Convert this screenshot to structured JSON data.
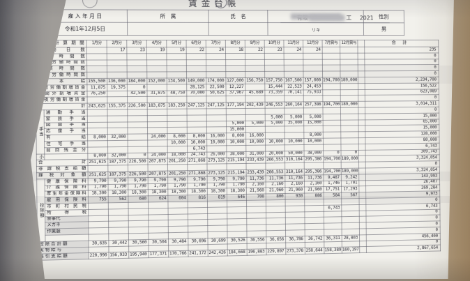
{
  "colors": {
    "paper": "#f2f1ec",
    "desk_left": "#78787c",
    "desk_right": "#b29674",
    "ink": "#2f2f3a",
    "grid_line": "#5f5f6c"
  },
  "document": {
    "title": "賃金台帳",
    "company_line": {
      "prefix": "有限",
      "suffix": "工",
      "year": "2021"
    },
    "header": {
      "hire_date_label": "雇 入 年 月 日",
      "hire_date_value": "令和1年12月5日",
      "department_label": "所　属",
      "name_label": "氏　名",
      "name_reading": "リキ",
      "gender_label": "性別",
      "gender_value": "男"
    },
    "table": {
      "period_header": "賃金計算期間",
      "month_columns": [
        "1月分",
        "2月分",
        "3月分",
        "4月分",
        "5月分",
        "6月分",
        "7月分",
        "8月分",
        "9月分",
        "10月分",
        "11月分",
        "12月分",
        "7月賞与",
        "12月賞与"
      ],
      "total_column": "合 計",
      "rows": [
        {
          "label": "労 働 日 数",
          "group": "",
          "cells": [
            "",
            "17",
            "23",
            "19",
            "19",
            "22",
            "24",
            "18",
            "22",
            "23",
            "24",
            "24",
            "",
            ""
          ],
          "total": "235"
        },
        {
          "label": "労 働 時 間 数",
          "group": "",
          "cells": [],
          "total": "0"
        },
        {
          "label": "休日労働時間数",
          "group": "",
          "cells": [],
          "total": "0"
        },
        {
          "label": "残 業 時 間 数",
          "group": "",
          "cells": [],
          "total": "0"
        },
        {
          "label": "深夜労働時間数",
          "group": "",
          "cells": [],
          "total": "0"
        },
        {
          "label": "基 本 給",
          "group": "",
          "cells": [
            "155,500",
            "136,000",
            "184,000",
            "152,000",
            "134,500",
            "149,000",
            "174,000",
            "127,000",
            "156,750",
            "157,750",
            "167,500",
            "157,000",
            "194,700",
            "189,000"
          ],
          "total": "2,234,700"
        },
        {
          "label": "休日労働割増賃金",
          "group": "",
          "cells": [
            "11,875",
            "19,375",
            "0",
            "",
            "",
            "28,125",
            "22,500",
            "12,227",
            "",
            "15,444",
            "22,523",
            "24,453",
            "",
            ""
          ],
          "total": "156,522"
        },
        {
          "label": "時間外割増賃金",
          "group": "",
          "cells": [
            "76,250",
            "",
            "42,500",
            "31,875",
            "48,750",
            "70,000",
            "50,625",
            "37,967",
            "45,689",
            "73,359",
            "70,141",
            "75,933",
            "",
            ""
          ],
          "total": "623,089"
        },
        {
          "label": "深夜労働割増賃金",
          "group": "",
          "cells": [],
          "total": "0"
        },
        {
          "label": "小 計",
          "group": "",
          "cells": [
            "243,625",
            "155,375",
            "226,500",
            "183,875",
            "183,250",
            "247,125",
            "247,125",
            "177,194",
            "202,439",
            "246,553",
            "260,164",
            "257,386",
            "194,700",
            "189,000"
          ],
          "total": "3,014,311"
        },
        {
          "label": "通 勤 手 当",
          "group": "手当",
          "cells": [],
          "total": "0"
        },
        {
          "label": "家 族 手 当",
          "group": "手当",
          "cells": [
            "",
            "",
            "",
            "",
            "",
            "",
            "",
            "",
            "",
            "5,000",
            "5,000",
            "5,000",
            "",
            ""
          ],
          "total": "15,000"
        },
        {
          "label": "図 面 手 当",
          "group": "手当",
          "cells": [
            "",
            "",
            "",
            "",
            "",
            "",
            "",
            "5,000",
            "5,000",
            "5,000",
            "35,000",
            "15,000",
            "",
            ""
          ],
          "total": "65,000"
        },
        {
          "label": "応 援 手 当",
          "group": "手当",
          "cells": [
            "",
            "",
            "",
            "",
            "",
            "",
            "",
            "15,000",
            "",
            "",
            "",
            "",
            "",
            ""
          ],
          "total": "15,000"
        },
        {
          "label": "有 給",
          "group": "手当",
          "cells": [
            "8,000",
            "32,000",
            "",
            "24,000",
            "8,000",
            "8,000",
            "16,000",
            "8,000",
            "16,000",
            "",
            "",
            "8,000",
            "",
            ""
          ],
          "total": "128,000"
        },
        {
          "label": "住 宅 手 当",
          "group": "手当",
          "cells": [
            "",
            "",
            "",
            "",
            "10,000",
            "10,000",
            "10,000",
            "10,000",
            "10,000",
            "10,000",
            "10,000",
            "10,000",
            "",
            ""
          ],
          "total": "80,000"
        },
        {
          "label": "前回残金分",
          "group": "手当",
          "cells": [
            "",
            "",
            "",
            "",
            "",
            "6,743",
            "",
            "",
            "",
            "",
            "",
            "",
            "",
            ""
          ],
          "total": "6,743"
        },
        {
          "label": "",
          "group": "小計",
          "cells": [
            "8,000",
            "32,000",
            "0",
            "24,000",
            "18,000",
            "24,743",
            "26,000",
            "38,000",
            "31,000",
            "20,000",
            "50,000",
            "38,000",
            "0",
            "0"
          ],
          "total": "309,743"
        },
        {
          "label": "合 計",
          "group": "",
          "cells": [
            "251,625",
            "187,375",
            "226,500",
            "207,875",
            "201,250",
            "271,868",
            "273,125",
            "215,194",
            "233,439",
            "266,553",
            "310,164",
            "295,386",
            "194,700",
            "189,000"
          ],
          "total": "3,324,054"
        },
        {
          "label": "非課税支給額",
          "group": "",
          "cells": [],
          "total": "0"
        },
        {
          "label": "課 税 対 象 額",
          "group": "",
          "cells": [
            "251,625",
            "187,375",
            "226,500",
            "207,875",
            "201,250",
            "271,868",
            "273,125",
            "215,194",
            "233,439",
            "266,553",
            "310,164",
            "295,386",
            "194,700",
            "189,000"
          ],
          "total": "3,324,054"
        },
        {
          "label": "健 康 保 険 料",
          "group": "控除額",
          "cells": [
            "9,790",
            "9,790",
            "9,790",
            "9,790",
            "9,790",
            "9,790",
            "9,790",
            "9,790",
            "11,736",
            "11,736",
            "11,736",
            "11,736",
            "9,487",
            "9,242"
          ],
          "total": "143,993"
        },
        {
          "label": "介 護 保 険 料",
          "group": "控除額",
          "cells": [
            "1,790",
            "1,790",
            "1,790",
            "1,790",
            "1,790",
            "1,790",
            "1,790",
            "1,790",
            "2,160",
            "2,160",
            "2,160",
            "2,160",
            "1,746",
            "1,701"
          ],
          "total": "26,407"
        },
        {
          "label": "厚生年金保険料",
          "group": "控除額",
          "cells": [
            "18,300",
            "18,300",
            "18,300",
            "18,300",
            "18,300",
            "18,300",
            "18,300",
            "18,300",
            "21,960",
            "21,960",
            "21,960",
            "21,960",
            "17,751",
            "17,293"
          ],
          "total": "269,284"
        },
        {
          "label": "雇 用 保 険 料",
          "group": "控除額",
          "shaded": true,
          "cells": [
            "755",
            "562",
            "680",
            "624",
            "604",
            "816",
            "819",
            "646",
            "700",
            "800",
            "930",
            "886",
            "584",
            "567"
          ],
          "total": "9,973"
        },
        {
          "label": "市 町 村 民 税",
          "group": "控除額",
          "cells": [],
          "total": "0"
        },
        {
          "label": "所 得 税",
          "group": "控除額",
          "cells": [
            "",
            "",
            "",
            "",
            "",
            "",
            "",
            "",
            "",
            "",
            "",
            "",
            "6,743",
            ""
          ],
          "total": "6,743"
        },
        {
          "label": "食事代",
          "group": "控除額",
          "label_shaded": true,
          "cells": [],
          "total": "0"
        },
        {
          "label": "メガネ",
          "group": "控除額",
          "label_shaded": true,
          "cells": [],
          "total": "0"
        },
        {
          "label": "作業服",
          "group": "控除額",
          "label_shaded": true,
          "cells": [],
          "total": "0"
        },
        {
          "label": "",
          "group": "控除額",
          "cells": [],
          "total": "0"
        },
        {
          "label": "控 除 合 計 額",
          "group": "",
          "label_shaded": true,
          "cells": [
            "30,635",
            "30,442",
            "30,560",
            "30,504",
            "30,484",
            "30,696",
            "30,699",
            "30,526",
            "36,556",
            "36,656",
            "36,786",
            "36,742",
            "36,311",
            "28,803"
          ],
          "total": "456,400"
        },
        {
          "label": "実 物 給 与",
          "group": "",
          "label_shaded": true,
          "cells": [],
          "total": "0"
        },
        {
          "label": "差 引 支 給 額",
          "group": "",
          "label_shaded": true,
          "cells": [
            "220,990",
            "156,933",
            "195,940",
            "177,371",
            "170,766",
            "241,172",
            "242,426",
            "184,668",
            "196,883",
            "229,897",
            "273,378",
            "258,644",
            "158,389",
            "160,197"
          ],
          "total": "2,867,654"
        }
      ]
    }
  }
}
